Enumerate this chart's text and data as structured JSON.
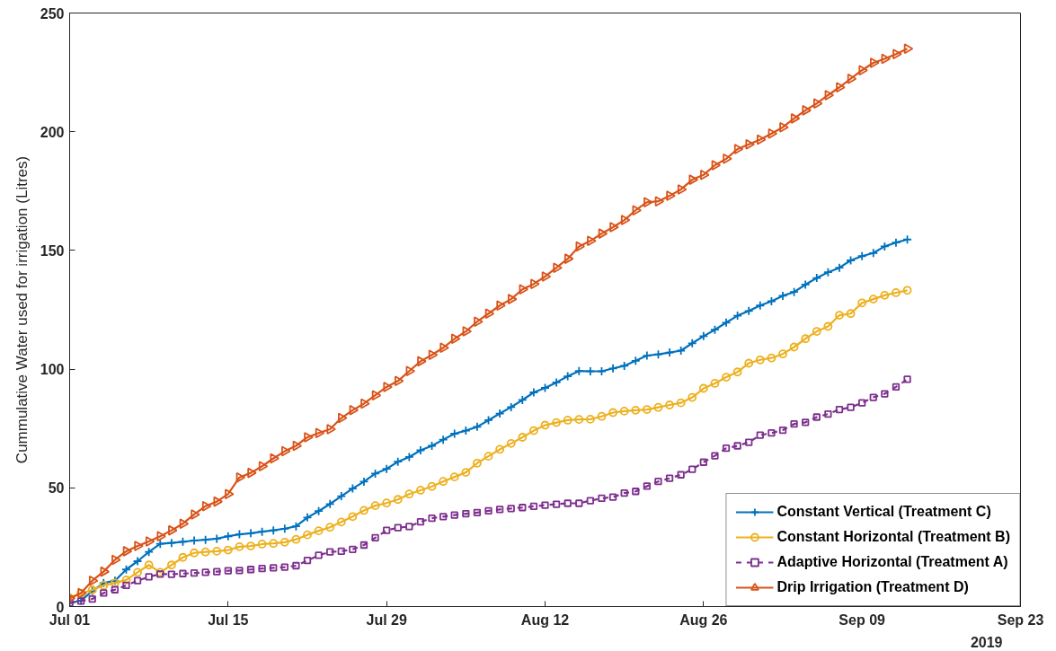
{
  "chart_data": {
    "type": "line",
    "ylabel": "Cummulative Water used for irrigation (Litres)",
    "x": [
      "2019-07-01",
      "2019-07-02",
      "2019-07-03",
      "2019-07-04",
      "2019-07-05",
      "2019-07-06",
      "2019-07-07",
      "2019-07-08",
      "2019-07-09",
      "2019-07-10",
      "2019-07-11",
      "2019-07-12",
      "2019-07-13",
      "2019-07-14",
      "2019-07-15",
      "2019-07-16",
      "2019-07-17",
      "2019-07-18",
      "2019-07-19",
      "2019-07-20",
      "2019-07-21",
      "2019-07-22",
      "2019-07-23",
      "2019-07-24",
      "2019-07-25",
      "2019-07-26",
      "2019-07-27",
      "2019-07-28",
      "2019-07-29",
      "2019-07-30",
      "2019-07-31",
      "2019-08-01",
      "2019-08-02",
      "2019-08-03",
      "2019-08-04",
      "2019-08-05",
      "2019-08-06",
      "2019-08-07",
      "2019-08-08",
      "2019-08-09",
      "2019-08-10",
      "2019-08-11",
      "2019-08-12",
      "2019-08-13",
      "2019-08-14",
      "2019-08-15",
      "2019-08-16",
      "2019-08-17",
      "2019-08-18",
      "2019-08-19",
      "2019-08-20",
      "2019-08-21",
      "2019-08-22",
      "2019-08-23",
      "2019-08-24",
      "2019-08-25",
      "2019-08-26",
      "2019-08-27",
      "2019-08-28",
      "2019-08-29",
      "2019-08-30",
      "2019-08-31",
      "2019-09-01",
      "2019-09-02",
      "2019-09-03",
      "2019-09-04",
      "2019-09-05",
      "2019-09-06",
      "2019-09-07",
      "2019-09-08",
      "2019-09-09",
      "2019-09-10",
      "2019-09-11",
      "2019-09-12",
      "2019-09-13"
    ],
    "xlim": [
      "2019-07-01",
      "2019-09-23"
    ],
    "xticks": [
      {
        "value": "2019-07-01",
        "label": "Jul 01"
      },
      {
        "value": "2019-07-15",
        "label": "Jul 15"
      },
      {
        "value": "2019-07-29",
        "label": "Jul 29"
      },
      {
        "value": "2019-08-12",
        "label": "Aug 12"
      },
      {
        "value": "2019-08-26",
        "label": "Aug 26"
      },
      {
        "value": "2019-09-09",
        "label": "Sep 09"
      },
      {
        "value": "2019-09-23",
        "label": "Sep 23"
      }
    ],
    "ylim": [
      0,
      250
    ],
    "yticks": [
      0,
      50,
      100,
      150,
      200,
      250
    ],
    "legend": "bottom right",
    "annotations": [
      "2019"
    ],
    "series": [
      {
        "name": "Constant Vertical (Treatment C)",
        "color": "#0072bd",
        "marker": "cross",
        "line_style": "solid",
        "values": [
          1.5,
          2.5,
          6.5,
          9.9,
          10.9,
          15.6,
          19.1,
          23.0,
          26.4,
          26.8,
          27.3,
          27.8,
          28.1,
          28.6,
          29.6,
          30.4,
          30.9,
          31.5,
          32.1,
          32.8,
          33.8,
          37.5,
          40.2,
          43.2,
          46.5,
          49.7,
          52.6,
          56.0,
          58.0,
          61.0,
          63.0,
          65.8,
          67.7,
          70.3,
          72.8,
          74.1,
          75.7,
          78.5,
          81.3,
          84.0,
          87.0,
          90.2,
          92.1,
          94.4,
          97.0,
          99.2,
          99.1,
          99.1,
          100.3,
          101.4,
          103.5,
          105.7,
          106.2,
          107.0,
          107.8,
          110.9,
          113.9,
          116.6,
          119.6,
          122.5,
          124.5,
          126.8,
          128.6,
          130.9,
          132.5,
          135.6,
          138.4,
          140.8,
          142.7,
          145.8,
          147.6,
          148.9,
          151.7,
          153.3,
          154.6
        ]
      },
      {
        "name": "Constant Horizontal (Treatment B)",
        "color": "#edb120",
        "marker": "circle",
        "line_style": "solid",
        "values": [
          3.6,
          5.5,
          7.0,
          8.9,
          9.9,
          11.2,
          14.4,
          17.5,
          14.4,
          17.5,
          20.7,
          22.6,
          23.0,
          23.3,
          23.8,
          25.2,
          25.5,
          26.3,
          26.6,
          27.1,
          28.3,
          30.2,
          31.9,
          33.4,
          35.6,
          37.9,
          40.5,
          42.5,
          43.6,
          45.1,
          47.4,
          49.0,
          50.6,
          52.7,
          54.6,
          56.5,
          60.4,
          63.3,
          66.2,
          68.7,
          71.3,
          74.1,
          76.4,
          77.5,
          78.5,
          78.8,
          78.9,
          80.1,
          81.7,
          82.3,
          82.7,
          83.0,
          83.9,
          84.9,
          85.8,
          88.1,
          91.9,
          94.0,
          96.6,
          98.8,
          102.5,
          103.9,
          104.7,
          106.4,
          109.3,
          112.8,
          115.9,
          118.0,
          122.7,
          123.4,
          127.9,
          129.5,
          131.1,
          132.2,
          133.2
        ]
      },
      {
        "name": "Adaptive Horizontal (Treatment A)",
        "color": "#7e2f8e",
        "marker": "square",
        "line_style": "dashed",
        "values": [
          1.5,
          2.3,
          3.2,
          5.7,
          7.1,
          8.9,
          10.9,
          12.5,
          13.7,
          13.6,
          13.9,
          14.1,
          14.4,
          14.7,
          15.1,
          15.2,
          15.6,
          16.0,
          16.3,
          16.6,
          17.2,
          19.4,
          21.6,
          23.0,
          23.3,
          24.1,
          25.9,
          29.0,
          32.1,
          33.2,
          33.7,
          35.7,
          37.2,
          37.9,
          38.5,
          39.1,
          39.6,
          40.3,
          40.9,
          41.3,
          41.7,
          42.2,
          42.7,
          43.1,
          43.5,
          43.5,
          44.6,
          45.6,
          46.1,
          47.8,
          48.5,
          50.7,
          52.7,
          54.0,
          55.5,
          57.8,
          60.8,
          63.5,
          66.7,
          67.7,
          69.2,
          72.2,
          73.1,
          74.3,
          76.9,
          77.6,
          79.8,
          81.1,
          83.0,
          83.9,
          85.8,
          88.1,
          89.6,
          92.5,
          95.7
        ]
      },
      {
        "name": "Drip Irrigation (Treatment D)",
        "color": "#d95319",
        "marker": "triangle",
        "line_style": "solid",
        "values": [
          3.5,
          5.7,
          10.9,
          14.7,
          19.7,
          23.3,
          25.5,
          27.4,
          29.6,
          32.1,
          34.9,
          38.8,
          42.3,
          44.2,
          47.4,
          54.4,
          56.3,
          59.1,
          62.4,
          65.4,
          67.7,
          71.3,
          73.1,
          74.7,
          79.4,
          82.7,
          85.5,
          89.0,
          92.5,
          95.0,
          99.2,
          103.3,
          106.0,
          109.0,
          112.8,
          115.9,
          120.0,
          123.4,
          126.8,
          129.5,
          133.6,
          135.9,
          139.0,
          142.7,
          146.5,
          151.7,
          154.0,
          157.1,
          159.8,
          162.8,
          166.9,
          170.3,
          170.7,
          173.0,
          175.7,
          179.8,
          181.8,
          185.9,
          188.6,
          192.7,
          194.7,
          196.7,
          199.2,
          201.9,
          205.6,
          209.0,
          211.9,
          215.4,
          218.7,
          222.3,
          225.9,
          229.0,
          230.7,
          232.7,
          235.0
        ]
      }
    ]
  }
}
